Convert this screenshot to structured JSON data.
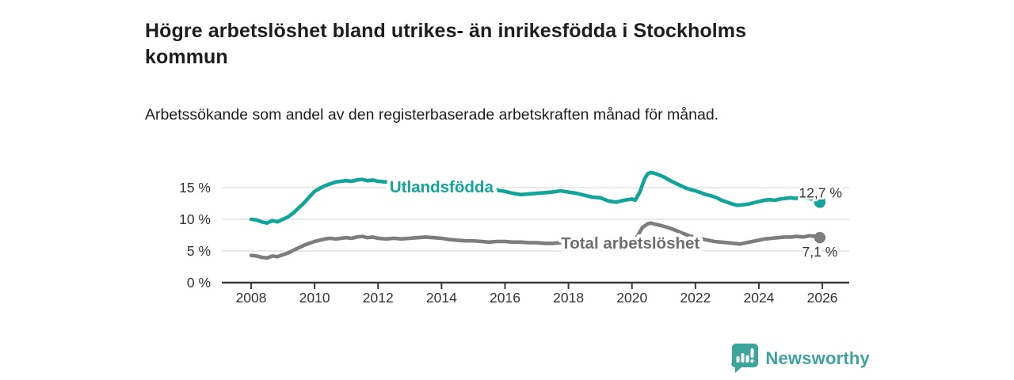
{
  "title": "Högre arbetslöshet bland utrikes- än inrikesfödda i Stockholms kommun",
  "subtitle": "Arbetssökande som andel av den registerbaserade arbetskraften månad för månad.",
  "branding": {
    "logo_text": "Newsworthy"
  },
  "colors": {
    "series_foreign": "#10a49b",
    "series_total": "#7d7d7d",
    "label_total": "#6e6e6e",
    "text_dark": "#1d1d1d",
    "axis_text": "#333333",
    "grid": "#dcdcdc",
    "axis_line": "#3b3b3b",
    "brand_teal": "#3da49c"
  },
  "chart_data": {
    "type": "line",
    "title": "Högre arbetslöshet bland utrikes- än inrikesfödda i Stockholms kommun",
    "subtitle": "Arbetssökande som andel av den registerbaserade arbetskraften månad för månad.",
    "xlabel": "",
    "ylabel": "",
    "grid": "horizontal",
    "legend_position": "inline-labels",
    "x_axis": {
      "ticks": [
        2008,
        2010,
        2012,
        2014,
        2016,
        2018,
        2020,
        2022,
        2024,
        2026
      ],
      "tick_labels": [
        "2008",
        "2010",
        "2012",
        "2014",
        "2016",
        "2018",
        "2020",
        "2022",
        "2024",
        "2026"
      ],
      "range": [
        2007.1,
        2026.85
      ]
    },
    "y_axis": {
      "ticks": [
        0,
        5,
        10,
        15
      ],
      "tick_labels": [
        "0 %",
        "5 %",
        "10 %",
        "15 %"
      ],
      "range": [
        0,
        20
      ]
    },
    "series": [
      {
        "name": "Utlandsfödda",
        "color": "#10a49b",
        "end_value": 12.7,
        "end_label": "12,7 %",
        "label_at": [
          2014.0,
          15.1
        ],
        "end_label_at": [
          2026.62,
          14.2
        ],
        "points": [
          [
            2008.0,
            10.0
          ],
          [
            2008.17,
            9.9
          ],
          [
            2008.33,
            9.6
          ],
          [
            2008.5,
            9.4
          ],
          [
            2008.67,
            9.8
          ],
          [
            2008.83,
            9.6
          ],
          [
            2009.0,
            10.0
          ],
          [
            2009.17,
            10.4
          ],
          [
            2009.33,
            11.0
          ],
          [
            2009.5,
            11.8
          ],
          [
            2009.67,
            12.6
          ],
          [
            2009.83,
            13.5
          ],
          [
            2010.0,
            14.4
          ],
          [
            2010.17,
            14.9
          ],
          [
            2010.33,
            15.3
          ],
          [
            2010.5,
            15.6
          ],
          [
            2010.67,
            15.9
          ],
          [
            2010.83,
            16.0
          ],
          [
            2011.0,
            16.1
          ],
          [
            2011.17,
            16.0
          ],
          [
            2011.33,
            16.2
          ],
          [
            2011.5,
            16.3
          ],
          [
            2011.67,
            16.1
          ],
          [
            2011.83,
            16.2
          ],
          [
            2012.0,
            16.0
          ],
          [
            2012.25,
            15.9
          ],
          [
            2012.5,
            15.8
          ],
          [
            2013.0,
            15.6
          ],
          [
            2013.5,
            15.5
          ],
          [
            2014.0,
            15.3
          ],
          [
            2014.5,
            15.1
          ],
          [
            2015.0,
            15.0
          ],
          [
            2015.5,
            14.8
          ],
          [
            2016.0,
            14.4
          ],
          [
            2016.25,
            14.1
          ],
          [
            2016.5,
            13.9
          ],
          [
            2016.75,
            14.0
          ],
          [
            2017.0,
            14.1
          ],
          [
            2017.25,
            14.2
          ],
          [
            2017.5,
            14.3
          ],
          [
            2017.75,
            14.5
          ],
          [
            2018.0,
            14.3
          ],
          [
            2018.25,
            14.1
          ],
          [
            2018.5,
            13.8
          ],
          [
            2018.75,
            13.5
          ],
          [
            2019.0,
            13.4
          ],
          [
            2019.25,
            12.9
          ],
          [
            2019.5,
            12.7
          ],
          [
            2019.75,
            13.0
          ],
          [
            2020.0,
            13.2
          ],
          [
            2020.1,
            13.0
          ],
          [
            2020.25,
            14.3
          ],
          [
            2020.4,
            16.4
          ],
          [
            2020.5,
            17.2
          ],
          [
            2020.6,
            17.4
          ],
          [
            2020.75,
            17.2
          ],
          [
            2020.9,
            16.9
          ],
          [
            2021.0,
            16.7
          ],
          [
            2021.17,
            16.2
          ],
          [
            2021.33,
            15.8
          ],
          [
            2021.5,
            15.4
          ],
          [
            2021.67,
            15.0
          ],
          [
            2021.83,
            14.7
          ],
          [
            2022.0,
            14.5
          ],
          [
            2022.17,
            14.2
          ],
          [
            2022.33,
            13.9
          ],
          [
            2022.5,
            13.7
          ],
          [
            2022.67,
            13.4
          ],
          [
            2022.83,
            13.0
          ],
          [
            2023.0,
            12.7
          ],
          [
            2023.17,
            12.4
          ],
          [
            2023.33,
            12.2
          ],
          [
            2023.5,
            12.3
          ],
          [
            2023.67,
            12.4
          ],
          [
            2023.83,
            12.6
          ],
          [
            2024.0,
            12.8
          ],
          [
            2024.17,
            13.0
          ],
          [
            2024.33,
            13.1
          ],
          [
            2024.5,
            13.0
          ],
          [
            2024.67,
            13.2
          ],
          [
            2024.83,
            13.3
          ],
          [
            2025.0,
            13.4
          ],
          [
            2025.17,
            13.3
          ],
          [
            2025.33,
            13.5
          ],
          [
            2025.5,
            13.4
          ],
          [
            2025.67,
            13.2
          ],
          [
            2025.83,
            12.9
          ],
          [
            2025.92,
            12.7
          ]
        ]
      },
      {
        "name": "Total arbetslöshet",
        "color": "#7d7d7d",
        "end_value": 7.1,
        "end_label": "7,1 %",
        "label_at": [
          2019.95,
          6.25
        ],
        "end_label_at": [
          2026.48,
          4.9
        ],
        "points": [
          [
            2008.0,
            4.3
          ],
          [
            2008.17,
            4.2
          ],
          [
            2008.33,
            4.0
          ],
          [
            2008.5,
            3.9
          ],
          [
            2008.67,
            4.2
          ],
          [
            2008.83,
            4.1
          ],
          [
            2009.0,
            4.4
          ],
          [
            2009.17,
            4.7
          ],
          [
            2009.33,
            5.1
          ],
          [
            2009.5,
            5.5
          ],
          [
            2009.67,
            5.9
          ],
          [
            2009.83,
            6.2
          ],
          [
            2010.0,
            6.5
          ],
          [
            2010.17,
            6.7
          ],
          [
            2010.33,
            6.9
          ],
          [
            2010.5,
            7.0
          ],
          [
            2010.67,
            6.9
          ],
          [
            2010.83,
            7.0
          ],
          [
            2011.0,
            7.1
          ],
          [
            2011.17,
            7.0
          ],
          [
            2011.33,
            7.2
          ],
          [
            2011.5,
            7.3
          ],
          [
            2011.67,
            7.1
          ],
          [
            2011.83,
            7.2
          ],
          [
            2012.0,
            7.0
          ],
          [
            2012.25,
            6.9
          ],
          [
            2012.5,
            7.0
          ],
          [
            2012.75,
            6.9
          ],
          [
            2013.0,
            7.0
          ],
          [
            2013.25,
            7.1
          ],
          [
            2013.5,
            7.2
          ],
          [
            2013.75,
            7.1
          ],
          [
            2014.0,
            7.0
          ],
          [
            2014.25,
            6.8
          ],
          [
            2014.5,
            6.7
          ],
          [
            2014.75,
            6.6
          ],
          [
            2015.0,
            6.6
          ],
          [
            2015.25,
            6.5
          ],
          [
            2015.5,
            6.4
          ],
          [
            2015.75,
            6.5
          ],
          [
            2016.0,
            6.5
          ],
          [
            2016.25,
            6.4
          ],
          [
            2016.5,
            6.4
          ],
          [
            2016.75,
            6.3
          ],
          [
            2017.0,
            6.3
          ],
          [
            2017.25,
            6.2
          ],
          [
            2017.5,
            6.2
          ],
          [
            2017.75,
            6.3
          ],
          [
            2018.0,
            6.3
          ],
          [
            2018.25,
            6.2
          ],
          [
            2018.5,
            6.2
          ],
          [
            2018.75,
            6.1
          ],
          [
            2019.0,
            6.1
          ],
          [
            2019.25,
            6.0
          ],
          [
            2019.5,
            6.1
          ],
          [
            2019.75,
            6.2
          ],
          [
            2020.0,
            6.4
          ],
          [
            2020.17,
            7.3
          ],
          [
            2020.33,
            8.7
          ],
          [
            2020.5,
            9.3
          ],
          [
            2020.58,
            9.4
          ],
          [
            2020.75,
            9.2
          ],
          [
            2020.92,
            9.0
          ],
          [
            2021.0,
            8.9
          ],
          [
            2021.2,
            8.6
          ],
          [
            2021.4,
            8.2
          ],
          [
            2021.6,
            7.8
          ],
          [
            2021.8,
            7.4
          ],
          [
            2022.0,
            7.1
          ],
          [
            2022.2,
            6.9
          ],
          [
            2022.4,
            6.7
          ],
          [
            2022.6,
            6.5
          ],
          [
            2022.8,
            6.4
          ],
          [
            2023.0,
            6.3
          ],
          [
            2023.2,
            6.2
          ],
          [
            2023.4,
            6.1
          ],
          [
            2023.6,
            6.3
          ],
          [
            2023.8,
            6.5
          ],
          [
            2024.0,
            6.7
          ],
          [
            2024.2,
            6.9
          ],
          [
            2024.4,
            7.0
          ],
          [
            2024.6,
            7.1
          ],
          [
            2024.8,
            7.2
          ],
          [
            2025.0,
            7.2
          ],
          [
            2025.2,
            7.3
          ],
          [
            2025.4,
            7.2
          ],
          [
            2025.6,
            7.4
          ],
          [
            2025.8,
            7.3
          ],
          [
            2025.92,
            7.1
          ]
        ]
      }
    ]
  }
}
